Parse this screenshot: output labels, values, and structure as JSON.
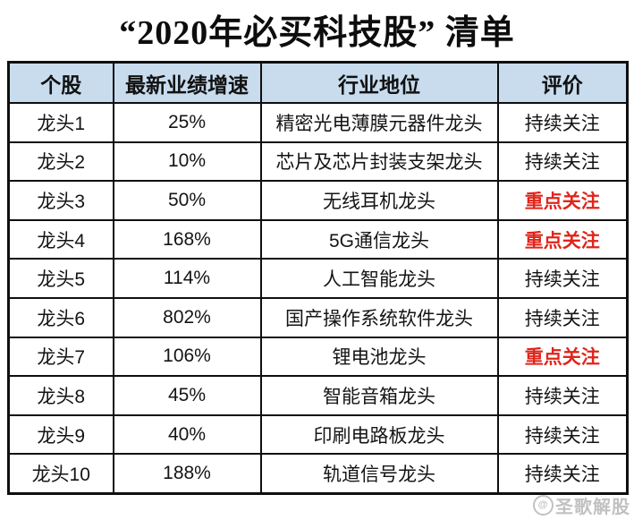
{
  "title": "“2020年必买科技股” 清单",
  "table": {
    "headers": [
      "个股",
      "最新业绩增速",
      "行业地位",
      "评价"
    ],
    "rows": [
      {
        "stock": "龙头1",
        "growth": "25%",
        "position": "精密光电薄膜元器件龙头",
        "rating": "持续关注"
      },
      {
        "stock": "龙头2",
        "growth": "10%",
        "position": "芯片及芯片封装支架龙头",
        "rating": "持续关注"
      },
      {
        "stock": "龙头3",
        "growth": "50%",
        "position": "无线耳机龙头",
        "rating": "重点关注"
      },
      {
        "stock": "龙头4",
        "growth": "168%",
        "position": "5G通信龙头",
        "rating": "重点关注"
      },
      {
        "stock": "龙头5",
        "growth": "114%",
        "position": "人工智能龙头",
        "rating": "持续关注"
      },
      {
        "stock": "龙头6",
        "growth": "802%",
        "position": "国产操作系统软件龙头",
        "rating": "持续关注"
      },
      {
        "stock": "龙头7",
        "growth": "106%",
        "position": "锂电池龙头",
        "rating": "重点关注"
      },
      {
        "stock": "龙头8",
        "growth": "45%",
        "position": "智能音箱龙头",
        "rating": "持续关注"
      },
      {
        "stock": "龙头9",
        "growth": "40%",
        "position": "印刷电路板龙头",
        "rating": "持续关注"
      },
      {
        "stock": "龙头10",
        "growth": "188%",
        "position": "轨道信号龙头",
        "rating": "持续关注"
      }
    ]
  },
  "watermark": {
    "text": "圣歌解股",
    "icon": "circle-logo"
  },
  "colors": {
    "header_bg": "#c8dcee",
    "highlight_red": "#e0251b",
    "border": "#0f0f0f",
    "text": "#141414"
  },
  "chart_data": {
    "type": "table",
    "title": "“2020年必买科技股” 清单",
    "columns": [
      "个股",
      "最新业绩增速",
      "行业地位",
      "评价"
    ],
    "categories": [
      "龙头1",
      "龙头2",
      "龙头3",
      "龙头4",
      "龙头5",
      "龙头6",
      "龙头7",
      "龙头8",
      "龙头9",
      "龙头10"
    ],
    "growth_values_pct": [
      25,
      10,
      50,
      168,
      114,
      802,
      106,
      45,
      40,
      188
    ],
    "industry_positions": [
      "精密光电薄膜元器件龙头",
      "芯片及芯片封装支架龙头",
      "无线耳机龙头",
      "5G通信龙头",
      "人工智能龙头",
      "国产操作系统软件龙头",
      "锂电池龙头",
      "智能音箱龙头",
      "印刷电路板龙头",
      "轨道信号龙头"
    ],
    "ratings": [
      "持续关注",
      "持续关注",
      "重点关注",
      "重点关注",
      "持续关注",
      "持续关注",
      "重点关注",
      "持续关注",
      "持续关注",
      "持续关注"
    ],
    "highlighted_rows": [
      "龙头3",
      "龙头4",
      "龙头7"
    ],
    "legend_position": "none",
    "grid": true
  }
}
